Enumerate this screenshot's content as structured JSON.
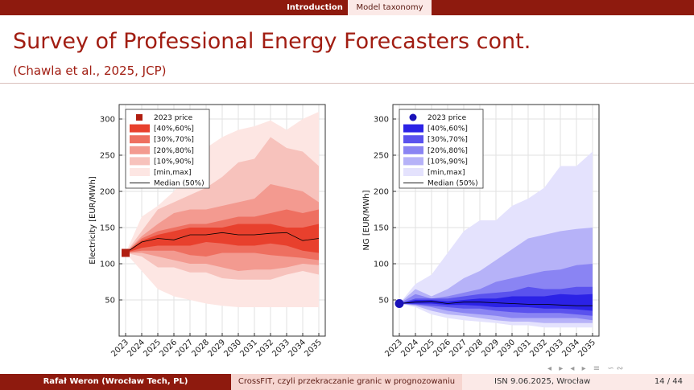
{
  "nav": {
    "active": "Introduction",
    "inactive": "Model taxonomy"
  },
  "header": {
    "title": "Survey of Professional Energy Forecasters cont.",
    "subtitle": "(Chawla et al., 2025, JCP)"
  },
  "footer": {
    "author": "Rafał Weron  (Wrocław Tech, PL)",
    "talk": "CrossFIT, czyli przekraczanie granic w prognozowaniu",
    "venue_date": "ISN 9.06.2025, Wrocław",
    "page": "14 / 44"
  },
  "nav_icons": "◂ ▸ ◂ ▸ ≡ ∽∾",
  "chart_data": [
    {
      "type": "area",
      "ylabel": "Electricity [EUR/MWh]",
      "xlabel": "",
      "ylim": [
        0,
        320
      ],
      "yticks": [
        50,
        100,
        150,
        200,
        250,
        300
      ],
      "x": [
        "2023",
        "2024",
        "2025",
        "2026",
        "2027",
        "2028",
        "2029",
        "2030",
        "2031",
        "2032",
        "2033",
        "2034",
        "2035"
      ],
      "grid": true,
      "legend_placement": "top-left",
      "colors": {
        "c4060": "#e8402d",
        "c3070": "#ee6f60",
        "c2080": "#f39a90",
        "c1090": "#f7c2bc",
        "cminmax": "#fde6e3",
        "median": "#000000",
        "marker": "#b01d10"
      },
      "price_2023": 115,
      "legend": [
        "2023 price",
        "[40%,60%]",
        "[30%,70%]",
        "[20%,80%]",
        "[10%,90%]",
        "[min,max]",
        "Median (50%)"
      ],
      "bands": {
        "minmax": {
          "lo": [
            115,
            90,
            65,
            55,
            50,
            45,
            42,
            40,
            40,
            40,
            40,
            40,
            40
          ],
          "hi": [
            115,
            165,
            180,
            200,
            230,
            260,
            275,
            285,
            290,
            298,
            285,
            300,
            310
          ]
        },
        "p10_90": {
          "lo": [
            115,
            110,
            95,
            95,
            88,
            88,
            80,
            78,
            78,
            78,
            85,
            90,
            85
          ],
          "hi": [
            115,
            145,
            175,
            185,
            195,
            205,
            220,
            240,
            245,
            275,
            260,
            255,
            235
          ]
        },
        "p20_80": {
          "lo": [
            115,
            115,
            110,
            105,
            100,
            100,
            95,
            90,
            92,
            92,
            95,
            100,
            98
          ],
          "hi": [
            115,
            138,
            155,
            170,
            175,
            175,
            180,
            185,
            190,
            210,
            205,
            200,
            185
          ]
        },
        "p30_70": {
          "lo": [
            115,
            118,
            118,
            118,
            112,
            110,
            115,
            115,
            115,
            112,
            110,
            108,
            105
          ],
          "hi": [
            115,
            135,
            145,
            150,
            155,
            155,
            160,
            165,
            165,
            170,
            175,
            170,
            175
          ]
        },
        "p40_60": {
          "lo": [
            115,
            122,
            125,
            125,
            125,
            130,
            128,
            125,
            125,
            128,
            125,
            118,
            115
          ],
          "hi": [
            115,
            132,
            140,
            145,
            150,
            150,
            150,
            155,
            155,
            155,
            150,
            150,
            155
          ]
        }
      },
      "median": [
        115,
        130,
        135,
        133,
        140,
        140,
        143,
        140,
        140,
        142,
        143,
        132,
        135
      ]
    },
    {
      "type": "area",
      "ylabel": "NG [EUR/MWh]",
      "xlabel": "",
      "ylim": [
        0,
        320
      ],
      "yticks": [
        50,
        100,
        150,
        200,
        250,
        300
      ],
      "x": [
        "2023",
        "2024",
        "2025",
        "2026",
        "2027",
        "2028",
        "2029",
        "2030",
        "2031",
        "2032",
        "2033",
        "2034",
        "2035"
      ],
      "grid": true,
      "legend_placement": "top-left",
      "colors": {
        "c4060": "#2b22e6",
        "c3070": "#5a52ee",
        "c2080": "#8a84f3",
        "c1090": "#b6b2f8",
        "cminmax": "#e4e2fd",
        "median": "#000000",
        "marker": "#1a12b8"
      },
      "price_2023": 45,
      "legend": [
        "2023 price",
        "[40%,60%]",
        "[30%,70%]",
        "[20%,80%]",
        "[10%,90%]",
        "[min,max]",
        "Median (50%)"
      ],
      "bands": {
        "minmax": {
          "lo": [
            45,
            40,
            30,
            25,
            22,
            20,
            18,
            15,
            15,
            12,
            12,
            12,
            12
          ],
          "hi": [
            45,
            72,
            85,
            115,
            145,
            160,
            160,
            180,
            190,
            205,
            235,
            235,
            255
          ]
        },
        "p10_90": {
          "lo": [
            45,
            42,
            35,
            30,
            28,
            25,
            22,
            20,
            20,
            18,
            18,
            18,
            18
          ],
          "hi": [
            45,
            65,
            55,
            65,
            80,
            90,
            105,
            120,
            135,
            140,
            145,
            148,
            150
          ]
        },
        "p20_80": {
          "lo": [
            45,
            43,
            40,
            35,
            32,
            30,
            28,
            25,
            25,
            25,
            25,
            25,
            22
          ],
          "hi": [
            45,
            58,
            52,
            55,
            60,
            65,
            75,
            80,
            85,
            90,
            92,
            98,
            100
          ]
        },
        "p30_70": {
          "lo": [
            45,
            44,
            42,
            40,
            38,
            38,
            35,
            33,
            32,
            32,
            32,
            30,
            28
          ],
          "hi": [
            45,
            52,
            52,
            52,
            55,
            58,
            60,
            62,
            68,
            65,
            65,
            68,
            68
          ]
        },
        "p40_60": {
          "lo": [
            45,
            45,
            45,
            43,
            43,
            42,
            40,
            40,
            40,
            38,
            38,
            37,
            35
          ],
          "hi": [
            45,
            50,
            50,
            48,
            50,
            52,
            52,
            55,
            55,
            55,
            58,
            57,
            58
          ]
        }
      },
      "median": [
        45,
        47,
        48,
        45,
        47,
        47,
        46,
        45,
        44,
        44,
        43,
        42,
        42
      ]
    }
  ]
}
